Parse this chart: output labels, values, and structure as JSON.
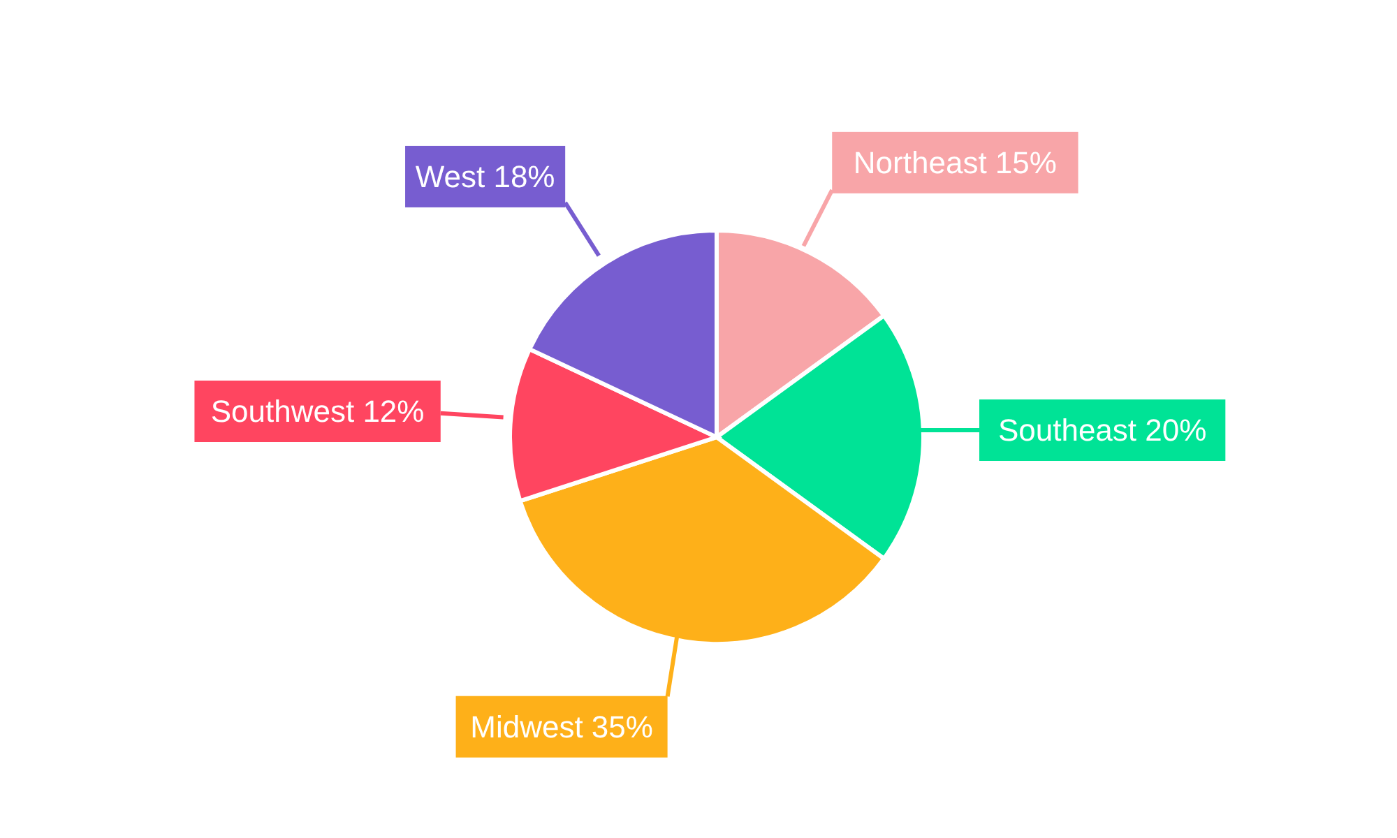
{
  "chart_data": {
    "type": "pie",
    "categories": [
      "Northeast",
      "Southeast",
      "Midwest",
      "Southwest",
      "West"
    ],
    "values": [
      15,
      20,
      35,
      12,
      18
    ],
    "value_labels": [
      "15%",
      "20%",
      "35%",
      "12%",
      "18%"
    ],
    "colors": [
      "#f8a5a8",
      "#00e396",
      "#feb019",
      "#ff4560",
      "#775dd0"
    ]
  }
}
